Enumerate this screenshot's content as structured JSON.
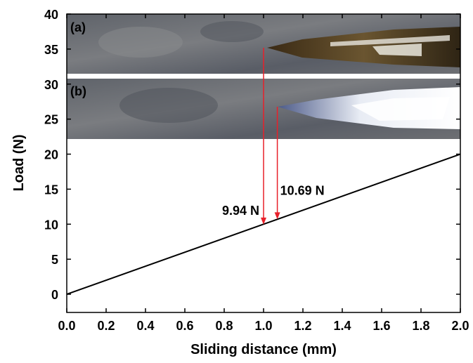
{
  "chart_data": {
    "type": "line",
    "x_label": "Sliding distance (mm)",
    "y_label": "Load (N)",
    "x": [
      0,
      2.0
    ],
    "series": [
      {
        "color": "#000000",
        "values": [
          0,
          20
        ]
      }
    ],
    "xlim": [
      0,
      2.0
    ],
    "xticks": [
      {
        "value": 0,
        "label": "0.0"
      },
      0.2,
      0.4,
      0.6,
      0.8,
      {
        "value": 1,
        "label": "1.0"
      },
      1.2,
      1.4,
      1.6,
      1.8,
      {
        "value": 2,
        "label": "2.0"
      }
    ],
    "ylim": [
      -2.6,
      40
    ],
    "yticks": [
      0,
      5,
      10,
      15,
      20,
      25,
      30,
      35,
      40
    ],
    "annotations": [
      {
        "text": "9.94 N",
        "x": 1.0,
        "y": 9.94,
        "color": "#e8202a"
      },
      {
        "text": "10.69 N",
        "x": 1.07,
        "y": 10.69,
        "color": "#e8202a"
      }
    ],
    "panels": [
      "(a)",
      "(b)"
    ]
  }
}
